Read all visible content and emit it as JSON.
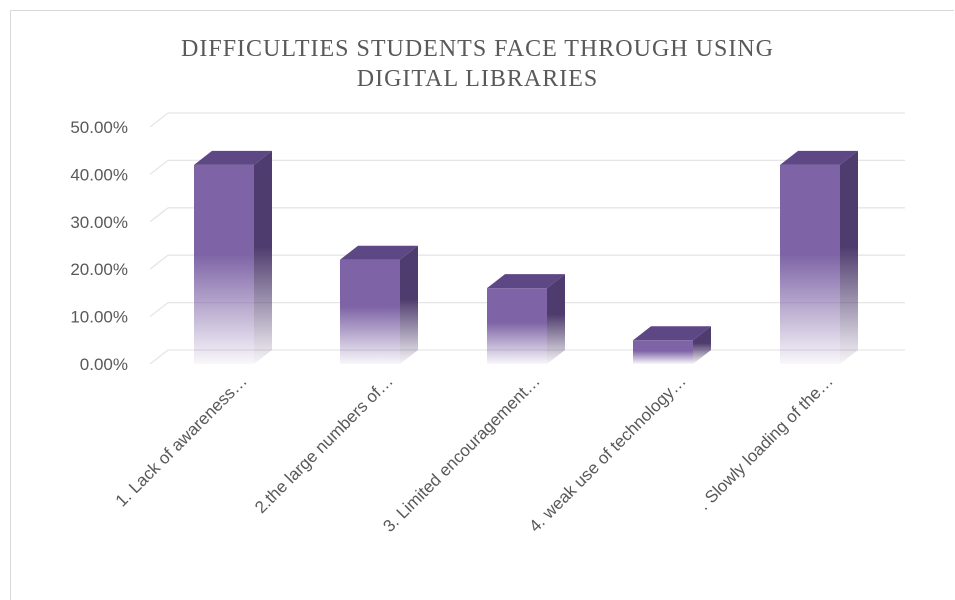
{
  "chart_data": {
    "type": "bar",
    "title_lines": [
      "DIFFICULTIES STUDENTS FACE THROUGH USING",
      "DIGITAL LIBRARIES"
    ],
    "categories": [
      "1. Lack of awareness…",
      "2.the large numbers of…",
      "3. Limited encouragement…",
      "4. weak use of technology…",
      ". Slowly loading of the…"
    ],
    "values": [
      0.42,
      0.22,
      0.16,
      0.05,
      0.42
    ],
    "ylim": [
      0,
      0.5
    ],
    "yticks": [
      "0.00%",
      "10.00%",
      "20.00%",
      "30.00%",
      "40.00%",
      "50.00%"
    ],
    "grid": true,
    "legend": "none",
    "colors": {
      "front": "#7e64a6",
      "side": "#4f3c6e",
      "top": "#5e4785",
      "grid": "#e6e6e6"
    }
  }
}
